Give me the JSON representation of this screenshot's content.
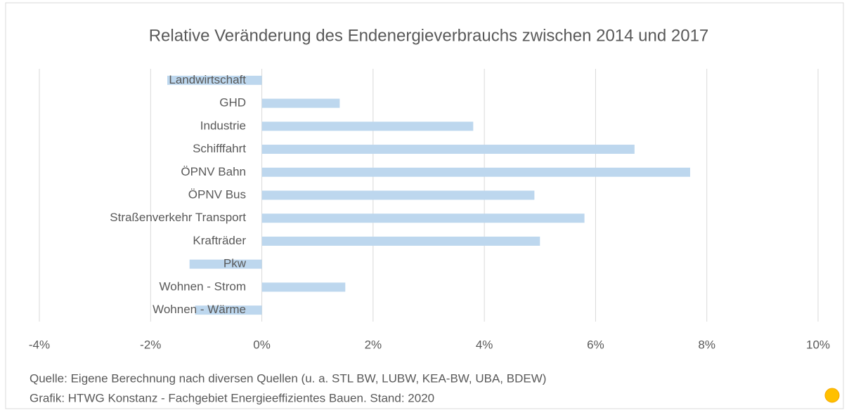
{
  "chart_data": {
    "type": "bar",
    "orientation": "horizontal",
    "title": "Relative Veränderung des Endenergieverbrauchs zwischen 2014 und 2017",
    "categories": [
      "Landwirtschaft",
      "GHD",
      "Industrie",
      "Schifffahrt",
      "ÖPNV Bahn",
      "ÖPNV Bus",
      "Straßenverkehr Transport",
      "Krafträder",
      "Pkw",
      "Wohnen - Strom",
      "Wohnen - Wärme"
    ],
    "values": [
      -1.7,
      1.4,
      3.8,
      6.7,
      7.7,
      4.9,
      5.8,
      5.0,
      -1.3,
      1.5,
      -1.2
    ],
    "color": "#bdd7ee",
    "xlim": [
      -4,
      10
    ],
    "xticks": [
      {
        "value": -4,
        "label": "-4%"
      },
      {
        "value": -2,
        "label": "-2%"
      },
      {
        "value": 0,
        "label": "0%"
      },
      {
        "value": 2,
        "label": "2%"
      },
      {
        "value": 4,
        "label": "4%"
      },
      {
        "value": 6,
        "label": "6%"
      },
      {
        "value": 8,
        "label": "8%"
      },
      {
        "value": 10,
        "label": "10%"
      }
    ],
    "grid": true,
    "notes": [
      "Quelle: Eigene Berechnung nach diversen Quellen (u. a. STL BW, LUBW, KEA-BW, UBA, BDEW)",
      "Grafik: HTWG Konstanz - Fachgebiet Energieeffizientes Bauen. Stand: 2020"
    ]
  }
}
